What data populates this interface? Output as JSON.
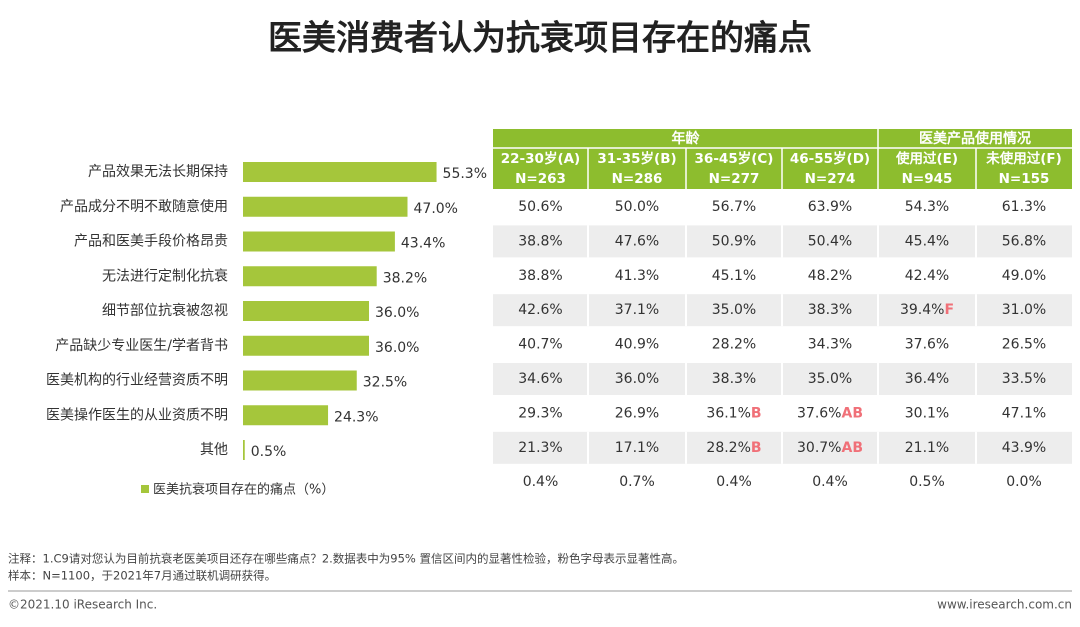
{
  "title": "医美消费者认为抗衰项目存在的痛点",
  "chart_data": {
    "type": "bar",
    "orientation": "horizontal",
    "categories": [
      "产品效果无法长期保持",
      "产品成分不明不敢随意使用",
      "产品和医美手段价格昂贵",
      "无法进行定制化抗衰",
      "细节部位抗衰被忽视",
      "产品缺少专业医生/学者背书",
      "医美机构的行业经营资质不明",
      "医美操作医生的从业资质不明",
      "其他"
    ],
    "values": [
      55.3,
      47.0,
      43.4,
      38.2,
      36.0,
      36.0,
      32.5,
      24.3,
      0.5
    ],
    "value_labels": [
      "55.3%",
      "47.0%",
      "43.4%",
      "38.2%",
      "36.0%",
      "36.0%",
      "32.5%",
      "24.3%",
      "0.5%"
    ],
    "color": "#a5c63b",
    "legend": "医美抗衰项目存在的痛点（%）"
  },
  "table": {
    "groups": [
      "年龄",
      "医美产品使用情况"
    ],
    "columns": [
      [
        "22-30岁(A)",
        "N=263"
      ],
      [
        "31-35岁(B)",
        "N=286"
      ],
      [
        "36-45岁(C)",
        "N=277"
      ],
      [
        "46-55岁(D)",
        "N=274"
      ],
      [
        "使用过(E)",
        "N=945"
      ],
      [
        "未使用过(F)",
        "N=155"
      ]
    ],
    "rows": [
      [
        "50.6%",
        "50.0%",
        "56.7%",
        "63.9%",
        "54.3%",
        "61.3%"
      ],
      [
        "38.8%",
        "47.6%",
        "50.9%",
        "50.4%",
        "45.4%",
        "56.8%"
      ],
      [
        "38.8%",
        "41.3%",
        "45.1%",
        "48.2%",
        "42.4%",
        "49.0%"
      ],
      [
        "42.6%",
        "37.1%",
        "35.0%",
        "38.3%",
        {
          "text": "39.4%",
          "mark": "F"
        },
        "31.0%"
      ],
      [
        "40.7%",
        "40.9%",
        "28.2%",
        "34.3%",
        "37.6%",
        "26.5%"
      ],
      [
        "34.6%",
        "36.0%",
        "38.3%",
        "35.0%",
        "36.4%",
        "33.5%"
      ],
      [
        "29.3%",
        "26.9%",
        {
          "text": "36.1%",
          "mark": "B"
        },
        {
          "text": "37.6%",
          "mark": "AB"
        },
        "30.1%",
        "47.1%"
      ],
      [
        "21.3%",
        "17.1%",
        {
          "text": "28.2%",
          "mark": "B"
        },
        {
          "text": "30.7%",
          "mark": "AB"
        },
        "21.1%",
        "43.9%"
      ],
      [
        "0.4%",
        "0.7%",
        "0.4%",
        "0.4%",
        "0.5%",
        "0.0%"
      ]
    ]
  },
  "notes": [
    "注释：1.C9请对您认为目前抗衰老医美项目还存在哪些痛点？2.数据表中为95% 置信区间内的显著性检验，粉色字母表示显著性高。",
    "样本：N=1100，于2021年7月通过联机调研获得。"
  ],
  "footer": {
    "left": "©2021.10 iResearch Inc.",
    "right": "www.iresearch.com.cn"
  }
}
